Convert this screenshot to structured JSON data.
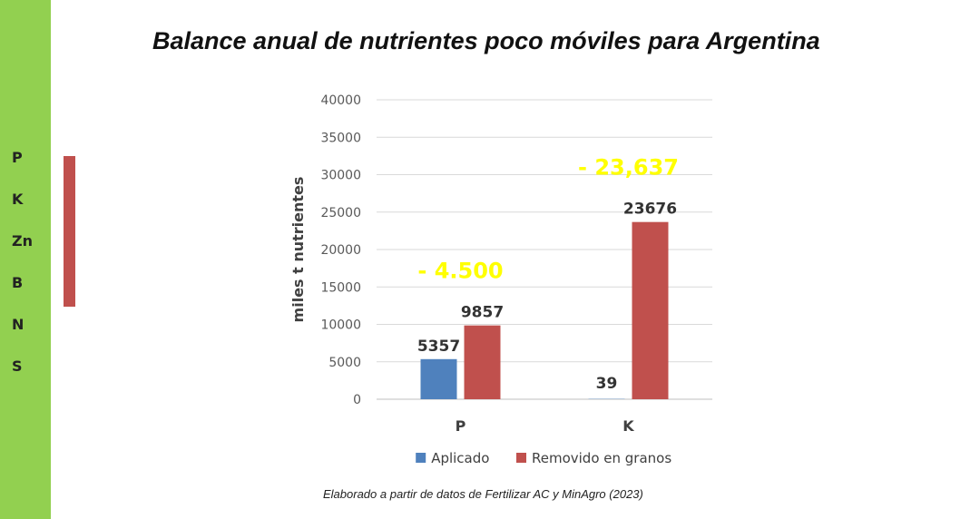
{
  "sidebar": {
    "color": "#92d050",
    "items": [
      "P",
      "K",
      "Zn",
      "B",
      "N",
      "S"
    ],
    "marker_color": "#c0504d"
  },
  "chart_data": {
    "type": "bar",
    "title": "Balance anual de nutrientes poco móviles para Argentina",
    "ylabel": "miles t nutrientes",
    "xlabel": "",
    "ylim": [
      0,
      40000
    ],
    "yticks": [
      0,
      5000,
      10000,
      15000,
      20000,
      25000,
      30000,
      35000,
      40000
    ],
    "categories": [
      "P",
      "K"
    ],
    "series": [
      {
        "name": "Aplicado",
        "color": "#4f81bd",
        "values": [
          5357,
          39
        ]
      },
      {
        "name": "Removido en granos",
        "color": "#c0504d",
        "values": [
          9857,
          23676
        ]
      }
    ],
    "annotations": [
      {
        "category": "P",
        "text": "- 4.500",
        "color": "#ffff00"
      },
      {
        "category": "K",
        "text": "- 23,637",
        "color": "#ffff00"
      }
    ],
    "grid": true,
    "legend": "bottom"
  },
  "caption": "Elaborado a partir de datos de Fertilizar AC y MinAgro (2023)"
}
